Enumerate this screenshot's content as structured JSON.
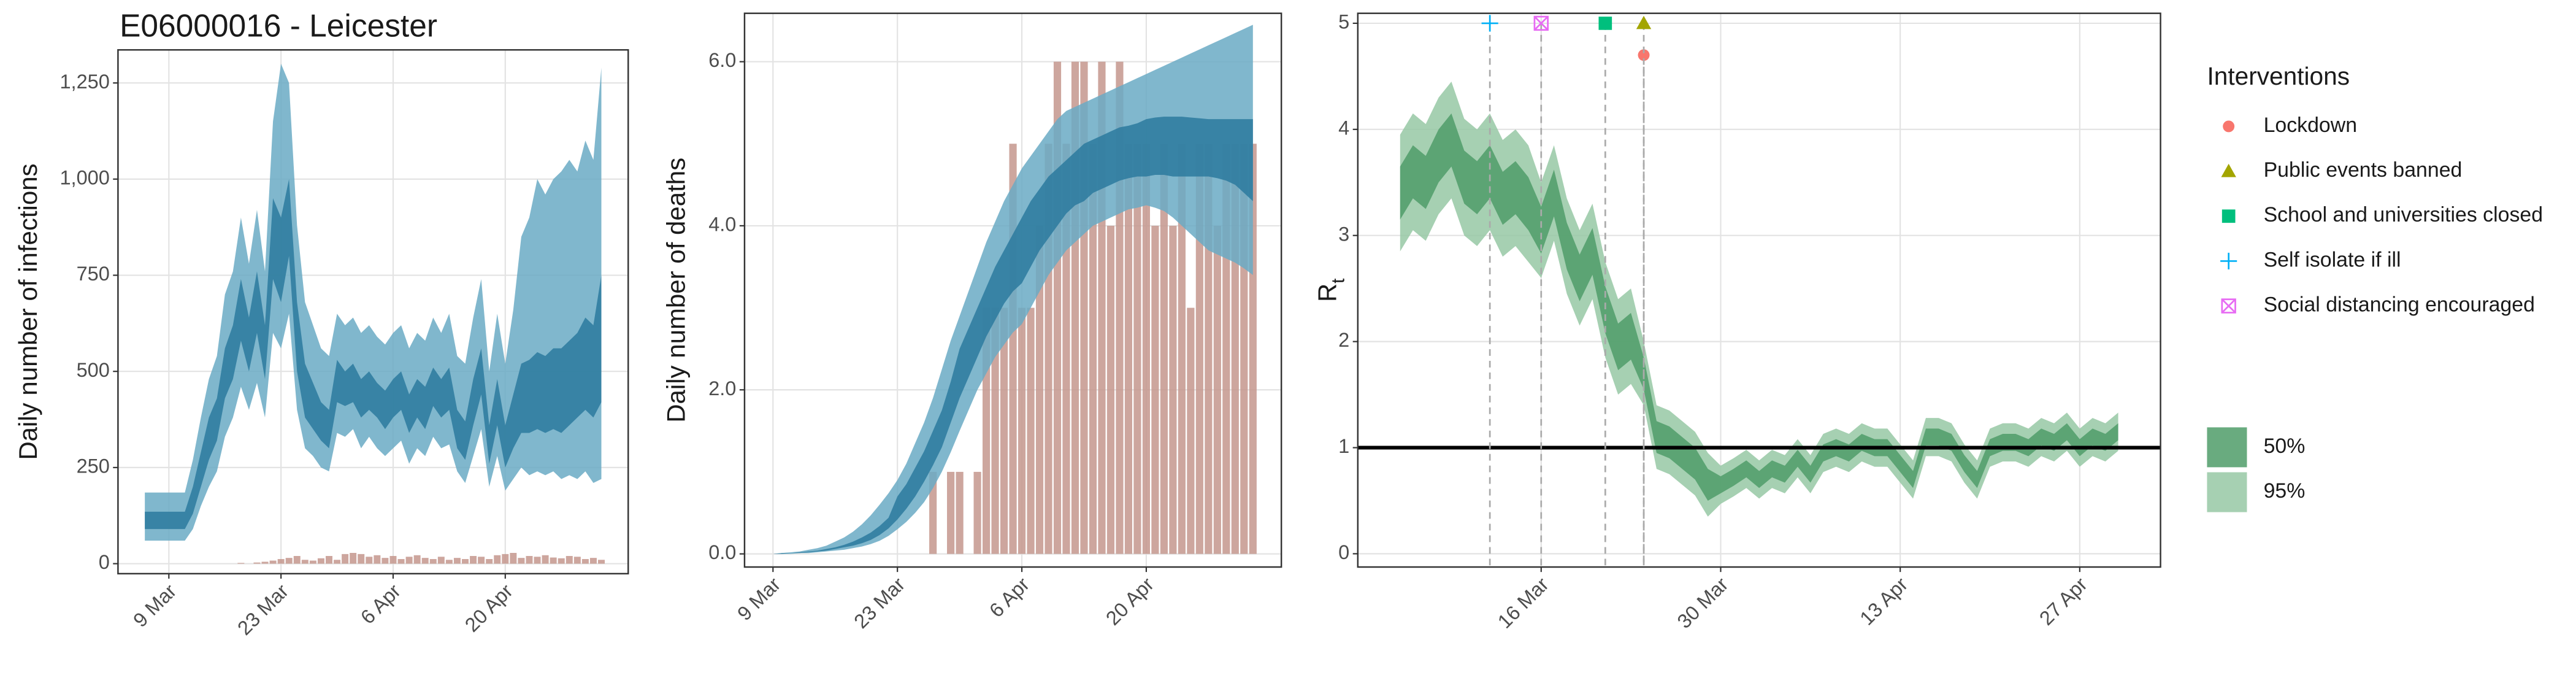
{
  "chart_data": [
    {
      "type": "area",
      "title": "E06000016 - Leicester",
      "ylabel": "Daily number of infections",
      "x": [
        "6 Mar",
        "7 Mar",
        "8 Mar",
        "9 Mar",
        "10 Mar",
        "11 Mar",
        "12 Mar",
        "13 Mar",
        "14 Mar",
        "15 Mar",
        "16 Mar",
        "17 Mar",
        "18 Mar",
        "19 Mar",
        "20 Mar",
        "21 Mar",
        "22 Mar",
        "23 Mar",
        "24 Mar",
        "25 Mar",
        "26 Mar",
        "27 Mar",
        "28 Mar",
        "29 Mar",
        "30 Mar",
        "31 Mar",
        "1 Apr",
        "2 Apr",
        "3 Apr",
        "4 Apr",
        "5 Apr",
        "6 Apr",
        "7 Apr",
        "8 Apr",
        "9 Apr",
        "10 Apr",
        "11 Apr",
        "12 Apr",
        "13 Apr",
        "14 Apr",
        "15 Apr",
        "16 Apr",
        "17 Apr",
        "18 Apr",
        "19 Apr",
        "20 Apr",
        "21 Apr",
        "22 Apr",
        "23 Apr",
        "24 Apr",
        "25 Apr",
        "26 Apr",
        "27 Apr",
        "28 Apr",
        "29 Apr",
        "30 Apr",
        "1 May",
        "2 May"
      ],
      "xticks": [
        "9 Mar",
        "23 Mar",
        "6 Apr",
        "20 Apr"
      ],
      "ylim": [
        -26,
        1336
      ],
      "yticks": [
        0,
        250,
        500,
        750,
        {
          "value": 1000,
          "label": "1,000"
        },
        {
          "value": 1250,
          "label": "1,250"
        }
      ],
      "grid": true,
      "bars": {
        "color": "#c4968d",
        "values": [
          0,
          0,
          0,
          0,
          0,
          0,
          0,
          0,
          0,
          0,
          0,
          0,
          2,
          0,
          3,
          5,
          8,
          12,
          15,
          20,
          10,
          8,
          14,
          20,
          10,
          25,
          28,
          25,
          18,
          22,
          15,
          20,
          12,
          18,
          22,
          15,
          12,
          18,
          10,
          15,
          12,
          20,
          18,
          12,
          22,
          25,
          28,
          15,
          20,
          18,
          22,
          16,
          14,
          20,
          18,
          12,
          15,
          10
        ]
      },
      "bands": [
        {
          "color": "#6aaac4",
          "lower": [
            60,
            60,
            60,
            60,
            60,
            60,
            90,
            150,
            200,
            240,
            330,
            380,
            460,
            400,
            470,
            380,
            600,
            560,
            650,
            400,
            300,
            280,
            250,
            240,
            340,
            330,
            350,
            300,
            330,
            300,
            280,
            300,
            320,
            260,
            300,
            280,
            330,
            300,
            310,
            240,
            210,
            280,
            350,
            200,
            280,
            190,
            220,
            250,
            230,
            240,
            230,
            240,
            220,
            230,
            220,
            240,
            210,
            220
          ],
          "upper": [
            185,
            185,
            185,
            185,
            185,
            185,
            270,
            380,
            480,
            540,
            700,
            760,
            900,
            780,
            920,
            760,
            1150,
            1300,
            1250,
            880,
            680,
            620,
            560,
            540,
            650,
            620,
            640,
            600,
            620,
            590,
            570,
            600,
            620,
            560,
            600,
            580,
            640,
            600,
            650,
            540,
            520,
            640,
            740,
            500,
            650,
            520,
            660,
            850,
            900,
            1000,
            960,
            1000,
            1020,
            1050,
            1020,
            1100,
            1050,
            1290
          ]
        },
        {
          "color": "#2b7a9e",
          "lower": [
            90,
            90,
            90,
            90,
            90,
            90,
            130,
            200,
            270,
            320,
            430,
            480,
            580,
            500,
            600,
            480,
            740,
            680,
            800,
            500,
            380,
            350,
            320,
            300,
            420,
            410,
            420,
            380,
            400,
            380,
            350,
            380,
            400,
            340,
            380,
            350,
            410,
            380,
            400,
            300,
            270,
            360,
            440,
            260,
            360,
            250,
            300,
            340,
            340,
            350,
            340,
            350,
            340,
            360,
            380,
            400,
            380,
            420
          ],
          "upper": [
            135,
            135,
            135,
            135,
            135,
            135,
            200,
            290,
            380,
            430,
            560,
            620,
            740,
            640,
            760,
            620,
            950,
            900,
            1000,
            680,
            520,
            470,
            420,
            400,
            530,
            500,
            520,
            480,
            500,
            470,
            450,
            480,
            500,
            440,
            480,
            460,
            510,
            480,
            510,
            400,
            370,
            480,
            560,
            360,
            480,
            360,
            440,
            520,
            530,
            550,
            540,
            560,
            560,
            580,
            600,
            640,
            620,
            750
          ]
        }
      ]
    },
    {
      "type": "area",
      "ylabel": "Daily number of deaths",
      "x": [
        "9 Mar",
        "10 Mar",
        "11 Mar",
        "12 Mar",
        "13 Mar",
        "14 Mar",
        "15 Mar",
        "16 Mar",
        "17 Mar",
        "18 Mar",
        "19 Mar",
        "20 Mar",
        "21 Mar",
        "22 Mar",
        "23 Mar",
        "24 Mar",
        "25 Mar",
        "26 Mar",
        "27 Mar",
        "28 Mar",
        "29 Mar",
        "30 Mar",
        "31 Mar",
        "1 Apr",
        "2 Apr",
        "3 Apr",
        "4 Apr",
        "5 Apr",
        "6 Apr",
        "7 Apr",
        "8 Apr",
        "9 Apr",
        "10 Apr",
        "11 Apr",
        "12 Apr",
        "13 Apr",
        "14 Apr",
        "15 Apr",
        "16 Apr",
        "17 Apr",
        "18 Apr",
        "19 Apr",
        "20 Apr",
        "21 Apr",
        "22 Apr",
        "23 Apr",
        "24 Apr",
        "25 Apr",
        "26 Apr",
        "27 Apr",
        "28 Apr",
        "29 Apr",
        "30 Apr",
        "1 May",
        "2 May"
      ],
      "xticks": [
        "9 Mar",
        "23 Mar",
        "6 Apr",
        "20 Apr"
      ],
      "ylim": [
        -0.16,
        6.59
      ],
      "yticks": [
        {
          "value": 0,
          "label": "0.0"
        },
        {
          "value": 2,
          "label": "2.0"
        },
        {
          "value": 4,
          "label": "4.0"
        },
        {
          "value": 6,
          "label": "6.0"
        }
      ],
      "grid": true,
      "bars": {
        "color": "#c4968d",
        "values": [
          0,
          0,
          0,
          0,
          0,
          0,
          0,
          0,
          0,
          0,
          0,
          0,
          0,
          0,
          0,
          0,
          0,
          0,
          1,
          0,
          1,
          1,
          0,
          1,
          3,
          3,
          3,
          5,
          3,
          3,
          4,
          5,
          6,
          5,
          6,
          6,
          5,
          6,
          4,
          6,
          5,
          5,
          5,
          4,
          5,
          4,
          5,
          3,
          5,
          5,
          4,
          5,
          5,
          5,
          5
        ]
      },
      "bands": [
        {
          "color": "#6aaac4",
          "lower": [
            0,
            0,
            0,
            0.01,
            0.01,
            0.02,
            0.03,
            0.04,
            0.05,
            0.07,
            0.09,
            0.12,
            0.16,
            0.22,
            0.3,
            0.39,
            0.5,
            0.63,
            0.8,
            1.0,
            1.24,
            1.5,
            1.75,
            2.0,
            2.2,
            2.4,
            2.55,
            2.7,
            2.8,
            3.0,
            3.2,
            3.4,
            3.55,
            3.7,
            3.8,
            3.9,
            4.0,
            4.05,
            4.1,
            4.15,
            4.2,
            4.22,
            4.25,
            4.22,
            4.18,
            4.1,
            4.0,
            3.9,
            3.8,
            3.7,
            3.65,
            3.6,
            3.55,
            3.48,
            3.4
          ],
          "upper": [
            0,
            0.01,
            0.02,
            0.03,
            0.05,
            0.07,
            0.1,
            0.15,
            0.2,
            0.27,
            0.36,
            0.47,
            0.6,
            0.74,
            0.9,
            1.1,
            1.35,
            1.6,
            1.9,
            2.25,
            2.6,
            2.9,
            3.2,
            3.5,
            3.8,
            4.05,
            4.3,
            4.5,
            4.7,
            4.85,
            5.0,
            5.15,
            5.3,
            5.4,
            5.45,
            5.5,
            5.55,
            5.6,
            5.65,
            5.7,
            5.75,
            5.8,
            5.85,
            5.9,
            5.95,
            6.0,
            6.05,
            6.1,
            6.15,
            6.2,
            6.25,
            6.3,
            6.35,
            6.4,
            6.45
          ]
        },
        {
          "color": "#2b7a9e",
          "lower": [
            0,
            0,
            0.01,
            0.01,
            0.02,
            0.03,
            0.04,
            0.06,
            0.08,
            0.1,
            0.13,
            0.17,
            0.23,
            0.31,
            0.42,
            0.55,
            0.7,
            0.88,
            1.08,
            1.3,
            1.6,
            1.9,
            2.15,
            2.4,
            2.65,
            2.85,
            3.05,
            3.2,
            3.3,
            3.5,
            3.7,
            3.85,
            4.0,
            4.15,
            4.25,
            4.3,
            4.4,
            4.45,
            4.5,
            4.55,
            4.58,
            4.6,
            4.6,
            4.62,
            4.62,
            4.6,
            4.6,
            4.6,
            4.6,
            4.6,
            4.58,
            4.55,
            4.5,
            4.4,
            4.3
          ],
          "upper": [
            0,
            0.01,
            0.01,
            0.02,
            0.03,
            0.04,
            0.06,
            0.08,
            0.11,
            0.15,
            0.2,
            0.26,
            0.34,
            0.44,
            0.7,
            0.85,
            1.05,
            1.25,
            1.5,
            1.75,
            2.1,
            2.5,
            2.75,
            3.0,
            3.25,
            3.5,
            3.7,
            3.9,
            4.1,
            4.3,
            4.45,
            4.6,
            4.7,
            4.8,
            4.9,
            5.0,
            5.05,
            5.1,
            5.15,
            5.2,
            5.22,
            5.25,
            5.3,
            5.32,
            5.33,
            5.33,
            5.33,
            5.32,
            5.31,
            5.3,
            5.3,
            5.3,
            5.3,
            5.3,
            5.3
          ]
        }
      ]
    },
    {
      "type": "area",
      "ylabel": "R",
      "ylabel_subscript": "t",
      "x": [
        "5 Mar",
        "6 Mar",
        "7 Mar",
        "8 Mar",
        "9 Mar",
        "10 Mar",
        "11 Mar",
        "12 Mar",
        "13 Mar",
        "14 Mar",
        "15 Mar",
        "16 Mar",
        "17 Mar",
        "18 Mar",
        "19 Mar",
        "20 Mar",
        "21 Mar",
        "22 Mar",
        "23 Mar",
        "24 Mar",
        "25 Mar",
        "26 Mar",
        "27 Mar",
        "28 Mar",
        "29 Mar",
        "30 Mar",
        "31 Mar",
        "1 Apr",
        "2 Apr",
        "3 Apr",
        "4 Apr",
        "5 Apr",
        "6 Apr",
        "7 Apr",
        "8 Apr",
        "9 Apr",
        "10 Apr",
        "11 Apr",
        "12 Apr",
        "13 Apr",
        "14 Apr",
        "15 Apr",
        "16 Apr",
        "17 Apr",
        "18 Apr",
        "19 Apr",
        "20 Apr",
        "21 Apr",
        "22 Apr",
        "23 Apr",
        "24 Apr",
        "25 Apr",
        "26 Apr",
        "27 Apr",
        "28 Apr",
        "29 Apr",
        "30 Apr"
      ],
      "xticks": [
        "16 Mar",
        "30 Mar",
        "13 Apr",
        "27 Apr"
      ],
      "ylim": [
        -0.125,
        5.094
      ],
      "yticks": [
        0,
        1,
        2,
        3,
        4,
        5
      ],
      "grid": true,
      "hline": 1,
      "legend": "right",
      "bands": [
        {
          "name": "95%",
          "color": "#97c8a4",
          "lower": [
            2.85,
            3.05,
            2.95,
            3.2,
            3.35,
            3.0,
            2.9,
            3.05,
            2.8,
            2.9,
            2.75,
            2.6,
            2.95,
            2.45,
            2.15,
            2.4,
            1.85,
            1.5,
            1.6,
            1.4,
            0.8,
            0.75,
            0.65,
            0.55,
            0.35,
            0.47,
            0.54,
            0.62,
            0.52,
            0.62,
            0.57,
            0.72,
            0.57,
            0.77,
            0.82,
            0.77,
            0.87,
            0.82,
            0.82,
            0.67,
            0.52,
            0.92,
            0.92,
            0.87,
            0.67,
            0.52,
            0.82,
            0.87,
            0.87,
            0.82,
            0.92,
            0.87,
            0.97,
            0.82,
            0.92,
            0.87,
            0.97
          ],
          "upper": [
            3.95,
            4.15,
            4.05,
            4.3,
            4.45,
            4.1,
            4.0,
            4.15,
            3.9,
            4.0,
            3.85,
            3.5,
            3.85,
            3.35,
            3.05,
            3.3,
            2.75,
            2.4,
            2.5,
            2.0,
            1.4,
            1.35,
            1.25,
            1.15,
            0.95,
            0.83,
            0.9,
            0.98,
            0.88,
            0.98,
            0.93,
            1.08,
            0.93,
            1.13,
            1.18,
            1.13,
            1.23,
            1.18,
            1.18,
            1.03,
            0.88,
            1.28,
            1.28,
            1.23,
            1.03,
            0.88,
            1.18,
            1.23,
            1.23,
            1.18,
            1.28,
            1.23,
            1.33,
            1.18,
            1.28,
            1.23,
            1.33
          ]
        },
        {
          "name": "50%",
          "color": "#4f9c68",
          "lower": [
            3.15,
            3.35,
            3.25,
            3.5,
            3.65,
            3.3,
            3.2,
            3.35,
            3.1,
            3.2,
            3.05,
            2.83,
            3.18,
            2.68,
            2.38,
            2.63,
            2.08,
            1.73,
            1.83,
            1.55,
            0.95,
            0.9,
            0.8,
            0.7,
            0.5,
            0.57,
            0.64,
            0.72,
            0.62,
            0.72,
            0.67,
            0.82,
            0.67,
            0.87,
            0.92,
            0.87,
            0.97,
            0.92,
            0.92,
            0.77,
            0.62,
            1.02,
            1.02,
            0.97,
            0.77,
            0.62,
            0.92,
            0.97,
            0.97,
            0.92,
            1.02,
            0.97,
            1.07,
            0.92,
            1.02,
            0.97,
            1.07
          ],
          "upper": [
            3.65,
            3.85,
            3.75,
            4.0,
            4.15,
            3.8,
            3.7,
            3.85,
            3.6,
            3.7,
            3.55,
            3.27,
            3.62,
            3.12,
            2.82,
            3.07,
            2.52,
            2.17,
            2.27,
            1.85,
            1.25,
            1.2,
            1.1,
            1.0,
            0.8,
            0.73,
            0.8,
            0.88,
            0.78,
            0.88,
            0.83,
            0.98,
            0.83,
            1.03,
            1.08,
            1.03,
            1.13,
            1.08,
            1.08,
            0.93,
            0.78,
            1.18,
            1.18,
            1.13,
            0.93,
            0.78,
            1.08,
            1.13,
            1.13,
            1.08,
            1.18,
            1.13,
            1.23,
            1.08,
            1.18,
            1.13,
            1.23
          ]
        }
      ],
      "legend_title": "Interventions",
      "interventions": [
        {
          "name": "Lockdown",
          "date": "24 Mar",
          "y": 4.7,
          "marker": "circle",
          "color": "#F8766D"
        },
        {
          "name": "Public events banned",
          "date": "24 Mar",
          "y": 5,
          "marker": "triangle",
          "color": "#A3A500"
        },
        {
          "name": "School and universities closed",
          "date": "21 Mar",
          "y": 5,
          "marker": "square",
          "color": "#00BF7D"
        },
        {
          "name": "Self isolate if ill",
          "date": "12 Mar",
          "y": 5,
          "marker": "plus",
          "color": "#00B0F6"
        },
        {
          "name": "Social distancing encouraged",
          "date": "16 Mar",
          "y": 5,
          "marker": "square-cross",
          "color": "#E76BF3"
        }
      ]
    }
  ]
}
